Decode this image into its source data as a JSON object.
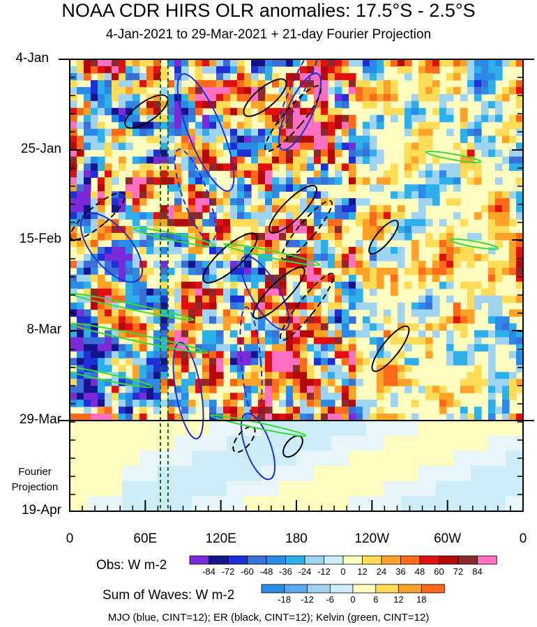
{
  "title": "NOAA CDR HIRS OLR anomalies: 17.5°S - 2.5°S",
  "subtitle": "4-Jan-2021 to 29-Mar-2021 + 21-day Fourier Projection",
  "projection_label_1": "Fourier",
  "projection_label_2": "Projection",
  "footer": "MJO (blue, CINT=12); ER (black, CINT=12); Kelvin (green, CINT=12)",
  "colors": {
    "mjo": "#1f2fd6",
    "er": "#000000",
    "kelvin": "#33dd33",
    "guide_lines": "#1a6b1a"
  },
  "chart_data": {
    "type": "heatmap",
    "title": "NOAA CDR HIRS OLR anomalies: 17.5°S - 2.5°S",
    "subtitle": "4-Jan-2021 to 29-Mar-2021 + 21-day Fourier Projection",
    "x_axis": {
      "ticks": [
        "0",
        "60E",
        "120E",
        "180",
        "120W",
        "60W",
        "0"
      ],
      "range": [
        0,
        360
      ]
    },
    "y_axis": {
      "ticks": [
        "4-Jan",
        "25-Jan",
        "15-Feb",
        "8-Mar",
        "29-Mar",
        "19-Apr"
      ],
      "range": [
        "4-Jan-2021",
        "19-Apr-2021"
      ]
    },
    "obs_colorbar": {
      "label": "Obs: W m-2",
      "ticks": [
        "-84",
        "-72",
        "-60",
        "-48",
        "-36",
        "-24",
        "-12",
        "0",
        "12",
        "24",
        "36",
        "48",
        "60",
        "72",
        "84"
      ],
      "colors": [
        "#7a2bd8",
        "#14138c",
        "#1f2fd6",
        "#3a6fd8",
        "#2b8ae6",
        "#2db0ea",
        "#9fd4f0",
        "#cdeef8",
        "#fffcc0",
        "#ffdc58",
        "#ffa328",
        "#ff6a1a",
        "#e01010",
        "#b40a0a",
        "#8a2a2a",
        "#ff70c0"
      ]
    },
    "waves_colorbar": {
      "label": "Sum of Waves: W m-2",
      "ticks": [
        "-18",
        "-12",
        "-6",
        "0",
        "6",
        "12",
        "18"
      ],
      "colors": [
        "#2b8ae6",
        "#5aa8ee",
        "#9fd4f0",
        "#cdeef8",
        "#fffcc0",
        "#ffdc58",
        "#ffa328",
        "#ff6a1a"
      ]
    },
    "guide_lines_x": [
      72,
      78
    ],
    "projection_start": "29-Mar",
    "wave_contours": [
      "MJO (blue, CINT=12)",
      "ER (black, CINT=12)",
      "Kelvin (green, CINT=12)"
    ],
    "series": [
      {
        "name": "MJO",
        "color": "#1f2fd6"
      },
      {
        "name": "ER",
        "color": "#000000"
      },
      {
        "name": "Kelvin",
        "color": "#33dd33"
      }
    ]
  }
}
